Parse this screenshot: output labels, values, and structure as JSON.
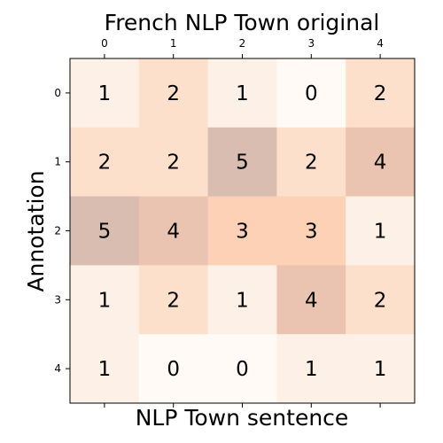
{
  "chart_data": {
    "type": "heatmap",
    "title": "French NLP Town original",
    "xlabel": "NLP Town sentence",
    "ylabel": "Annotation",
    "x_ticks": [
      "0",
      "1",
      "2",
      "3",
      "4"
    ],
    "y_ticks": [
      "0",
      "1",
      "2",
      "3",
      "4"
    ],
    "values": [
      [
        1,
        2,
        1,
        0,
        2
      ],
      [
        2,
        2,
        5,
        2,
        4
      ],
      [
        5,
        4,
        3,
        3,
        1
      ],
      [
        1,
        2,
        1,
        4,
        2
      ],
      [
        1,
        0,
        0,
        1,
        1
      ]
    ],
    "vmin": 0,
    "vmax": 5,
    "colors": {
      "0": "#fffaf5",
      "1": "#fdf0e6",
      "2": "#fde0cb",
      "3": "#fcd1b6",
      "4": "#ebc4b1",
      "5": "#d9bdb0"
    },
    "x_ticks_position": "top"
  }
}
